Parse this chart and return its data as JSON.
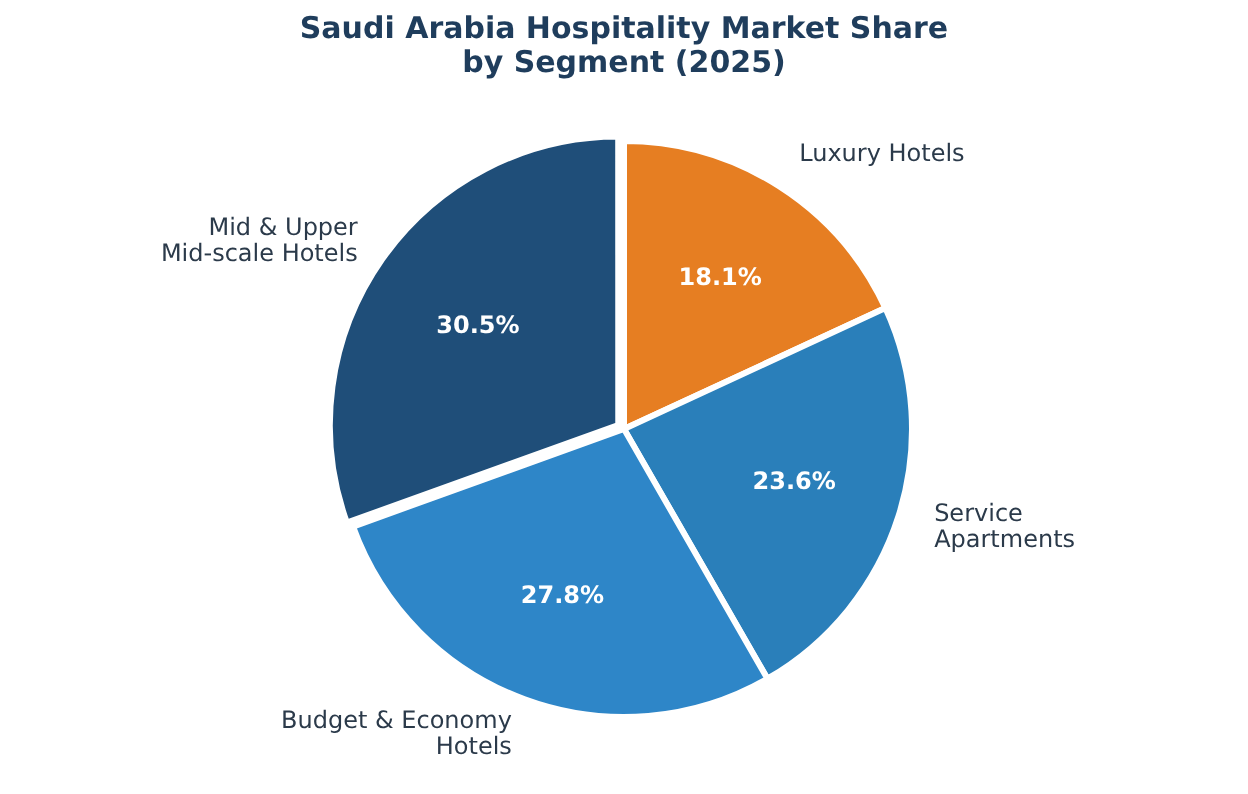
{
  "chart_data": {
    "type": "pie",
    "title": "Saudi Arabia Hospitality Market Share\nby Segment (2025)",
    "categories": [
      "Luxury Hotels",
      "Service\nApartments",
      "Budget & Economy\nHotels",
      "Mid & Upper\nMid-scale Hotels"
    ],
    "values": [
      18.1,
      23.6,
      27.8,
      30.5
    ],
    "colors": [
      "#e67e22",
      "#2a7fba",
      "#2e86c8",
      "#1f4e79"
    ],
    "value_labels": [
      "18.1%",
      "23.6%",
      "27.8%",
      "30.5%"
    ]
  }
}
